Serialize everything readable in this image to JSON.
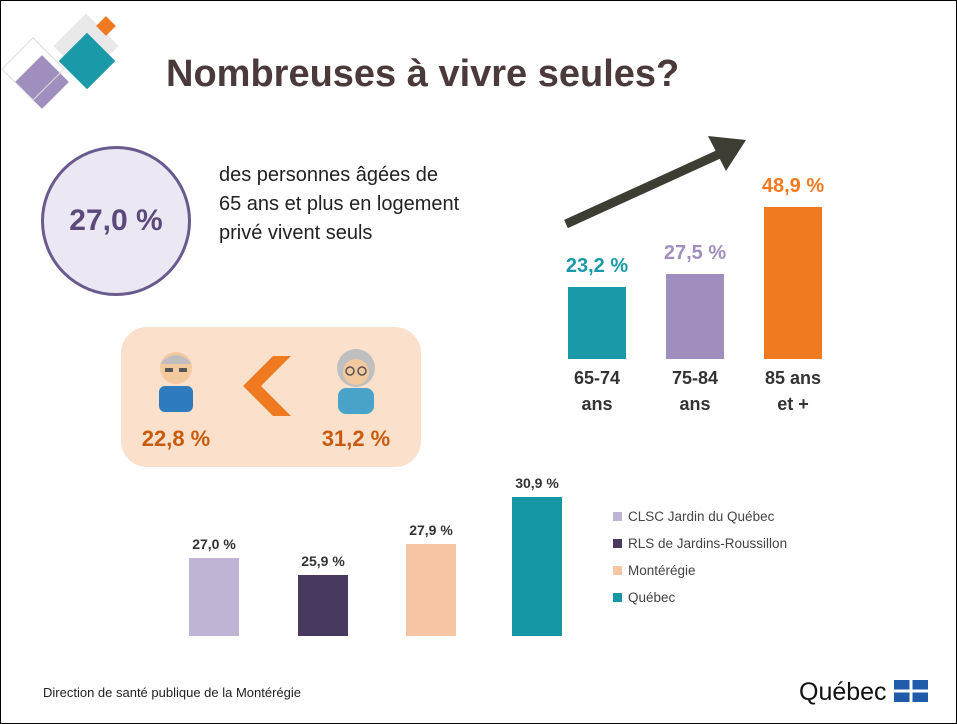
{
  "title": "Nombreuses à vivre seules?",
  "highlight": {
    "figure": "27,0 %",
    "text": "des personnes âgées de 65 ans et plus en logement privé vivent seuls"
  },
  "gender": {
    "men": "22,8 %",
    "women": "31,2 %"
  },
  "chart_data": [
    {
      "type": "bar",
      "categories": [
        "65-74 ans",
        "75-84 ans",
        "85 ans et +"
      ],
      "values": [
        23.2,
        27.5,
        48.9
      ],
      "value_labels": [
        "23,2 %",
        "27,5 %",
        "48,9 %"
      ],
      "colors": [
        "#1a9aa8",
        "#a08fbe",
        "#f07a22"
      ],
      "ylim": [
        0,
        50
      ]
    },
    {
      "type": "bar",
      "series": [
        {
          "name": "CLSC Jardin du Québec",
          "color": "#c0b4d4",
          "values": [
            27.0
          ],
          "value_labels": [
            "27,0 %"
          ]
        },
        {
          "name": "RLS de Jardins-Roussillon",
          "color": "#473a5e",
          "values": [
            25.9
          ],
          "value_labels": [
            "25,9 %"
          ]
        },
        {
          "name": "Montérégie",
          "color": "#f6c6a4",
          "values": [
            27.9
          ],
          "value_labels": [
            "27,9 %"
          ]
        },
        {
          "name": "Québec",
          "color": "#1597a5",
          "values": [
            30.9
          ],
          "value_labels": [
            "30,9 %"
          ]
        }
      ],
      "ylim": [
        22,
        32
      ]
    }
  ],
  "footer": {
    "source": "Direction de santé publique de la Montérégie",
    "logo": "Québec"
  }
}
